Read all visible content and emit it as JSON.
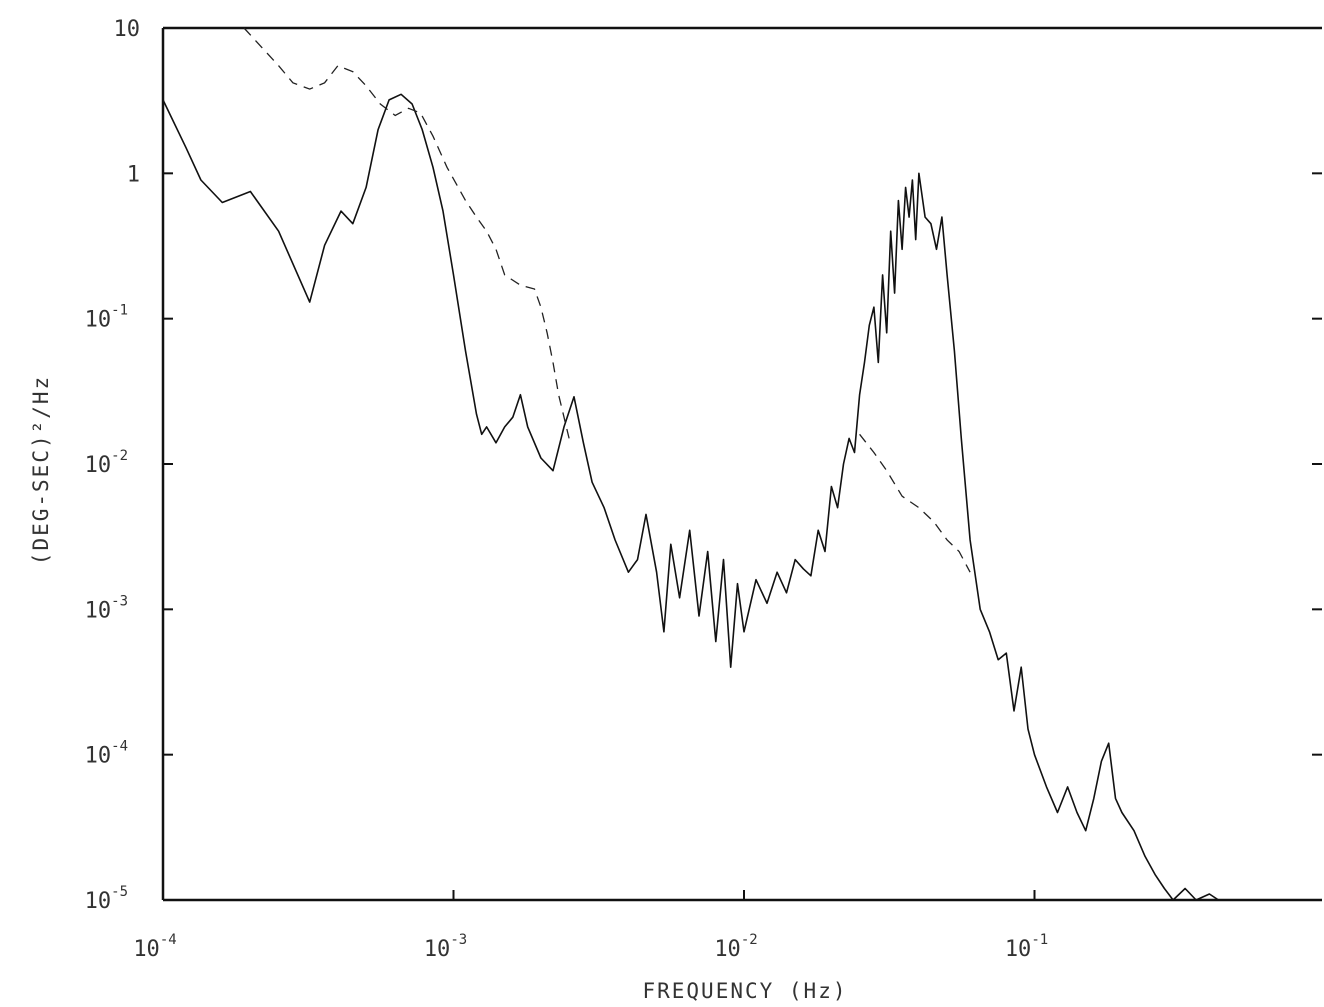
{
  "chart_data": {
    "type": "line",
    "xlabel": "FREQUENCY (Hz)",
    "ylabel": "(DEG-SEC)²/Hz",
    "xscale": "log",
    "yscale": "log",
    "xlim": [
      0.0001,
      1
    ],
    "ylim": [
      1e-05,
      10
    ],
    "grid": false,
    "x_ticks": [
      {
        "base": "10",
        "exp": "-4",
        "value": 0.0001
      },
      {
        "base": "10",
        "exp": "-3",
        "value": 0.001
      },
      {
        "base": "10",
        "exp": "-2",
        "value": 0.01
      },
      {
        "base": "10",
        "exp": "-1",
        "value": 0.1
      }
    ],
    "y_ticks": [
      {
        "base": "10",
        "exp": "",
        "value": 10
      },
      {
        "base": "1",
        "exp": "",
        "value": 1
      },
      {
        "base": "10",
        "exp": "-1",
        "value": 0.1
      },
      {
        "base": "10",
        "exp": "-2",
        "value": 0.01
      },
      {
        "base": "10",
        "exp": "-3",
        "value": 0.001
      },
      {
        "base": "10",
        "exp": "-4",
        "value": 0.0001
      },
      {
        "base": "10",
        "exp": "-5",
        "value": 1e-05
      }
    ],
    "series": [
      {
        "style": "solid",
        "x": [
          0.0001,
          0.00012,
          0.000135,
          0.00016,
          0.0002,
          0.00025,
          0.00032,
          0.00036,
          0.00041,
          0.00045,
          0.0005,
          0.00055,
          0.0006,
          0.00066,
          0.00072,
          0.00078,
          0.00085,
          0.00092,
          0.001,
          0.0011,
          0.0012,
          0.00125,
          0.0013,
          0.0014,
          0.0015,
          0.0016,
          0.0017,
          0.0018,
          0.002,
          0.0022,
          0.0024,
          0.0026,
          0.0028,
          0.003,
          0.0033,
          0.0036,
          0.004,
          0.0043,
          0.0046,
          0.005,
          0.0053,
          0.0056,
          0.006,
          0.0065,
          0.007,
          0.0075,
          0.008,
          0.0085,
          0.009,
          0.0095,
          0.01,
          0.011,
          0.012,
          0.013,
          0.014,
          0.015,
          0.016,
          0.017,
          0.018,
          0.019,
          0.02,
          0.021,
          0.022,
          0.023,
          0.024,
          0.025,
          0.026,
          0.027,
          0.028,
          0.029,
          0.03,
          0.031,
          0.032,
          0.033,
          0.034,
          0.035,
          0.036,
          0.037,
          0.038,
          0.039,
          0.04,
          0.042,
          0.044,
          0.046,
          0.048,
          0.05,
          0.053,
          0.056,
          0.06,
          0.065,
          0.07,
          0.075,
          0.08,
          0.085,
          0.09,
          0.095,
          0.1,
          0.11,
          0.12,
          0.13,
          0.14,
          0.15,
          0.16,
          0.17,
          0.18,
          0.19,
          0.2,
          0.22,
          0.24,
          0.26,
          0.28,
          0.3,
          0.33,
          0.36,
          0.4,
          0.43
        ],
        "y": [
          3.2,
          1.5,
          0.9,
          0.63,
          0.75,
          0.4,
          0.13,
          0.32,
          0.55,
          0.45,
          0.8,
          2.0,
          3.2,
          3.5,
          3.0,
          2.0,
          1.1,
          0.55,
          0.2,
          0.06,
          0.022,
          0.016,
          0.018,
          0.014,
          0.018,
          0.021,
          0.03,
          0.018,
          0.011,
          0.009,
          0.018,
          0.029,
          0.014,
          0.0075,
          0.005,
          0.003,
          0.0018,
          0.0022,
          0.0045,
          0.0018,
          0.0007,
          0.0028,
          0.0012,
          0.0035,
          0.0009,
          0.0025,
          0.0006,
          0.0022,
          0.0004,
          0.0015,
          0.0007,
          0.0016,
          0.0011,
          0.0018,
          0.0013,
          0.0022,
          0.0019,
          0.0017,
          0.0035,
          0.0025,
          0.007,
          0.005,
          0.01,
          0.015,
          0.012,
          0.03,
          0.05,
          0.09,
          0.12,
          0.05,
          0.2,
          0.08,
          0.4,
          0.15,
          0.65,
          0.3,
          0.8,
          0.5,
          0.9,
          0.35,
          1.0,
          0.5,
          0.45,
          0.3,
          0.5,
          0.2,
          0.06,
          0.015,
          0.003,
          0.001,
          0.0007,
          0.00045,
          0.0005,
          0.0002,
          0.0004,
          0.00015,
          0.0001,
          6e-05,
          4e-05,
          6e-05,
          4e-05,
          3e-05,
          5e-05,
          9e-05,
          0.00012,
          5e-05,
          4e-05,
          3e-05,
          2e-05,
          1.5e-05,
          1.2e-05,
          1e-05,
          1.2e-05,
          1e-05,
          1.1e-05,
          1e-05
        ]
      },
      {
        "style": "dashed",
        "x": [
          0.00019,
          0.00025,
          0.00028,
          0.00032,
          0.00036,
          0.0004,
          0.00045,
          0.0005,
          0.00056,
          0.00063,
          0.0007,
          0.00077,
          0.00085,
          0.00095,
          0.0011,
          0.0012,
          0.0013,
          0.0014,
          0.0015,
          0.0017,
          0.0019,
          0.002,
          0.0021,
          0.0022,
          0.0023,
          0.0025
        ],
        "y": [
          10,
          5.5,
          4.2,
          3.8,
          4.2,
          5.5,
          5.0,
          4.0,
          3.0,
          2.5,
          2.8,
          2.6,
          1.8,
          1.1,
          0.65,
          0.5,
          0.4,
          0.3,
          0.2,
          0.17,
          0.16,
          0.12,
          0.08,
          0.05,
          0.03,
          0.015
        ]
      },
      {
        "style": "dashed",
        "x": [
          0.025,
          0.028,
          0.031,
          0.035,
          0.04,
          0.045,
          0.05,
          0.055,
          0.06
        ],
        "y": [
          0.016,
          0.012,
          0.009,
          0.006,
          0.005,
          0.004,
          0.003,
          0.0025,
          0.0018
        ]
      }
    ]
  }
}
